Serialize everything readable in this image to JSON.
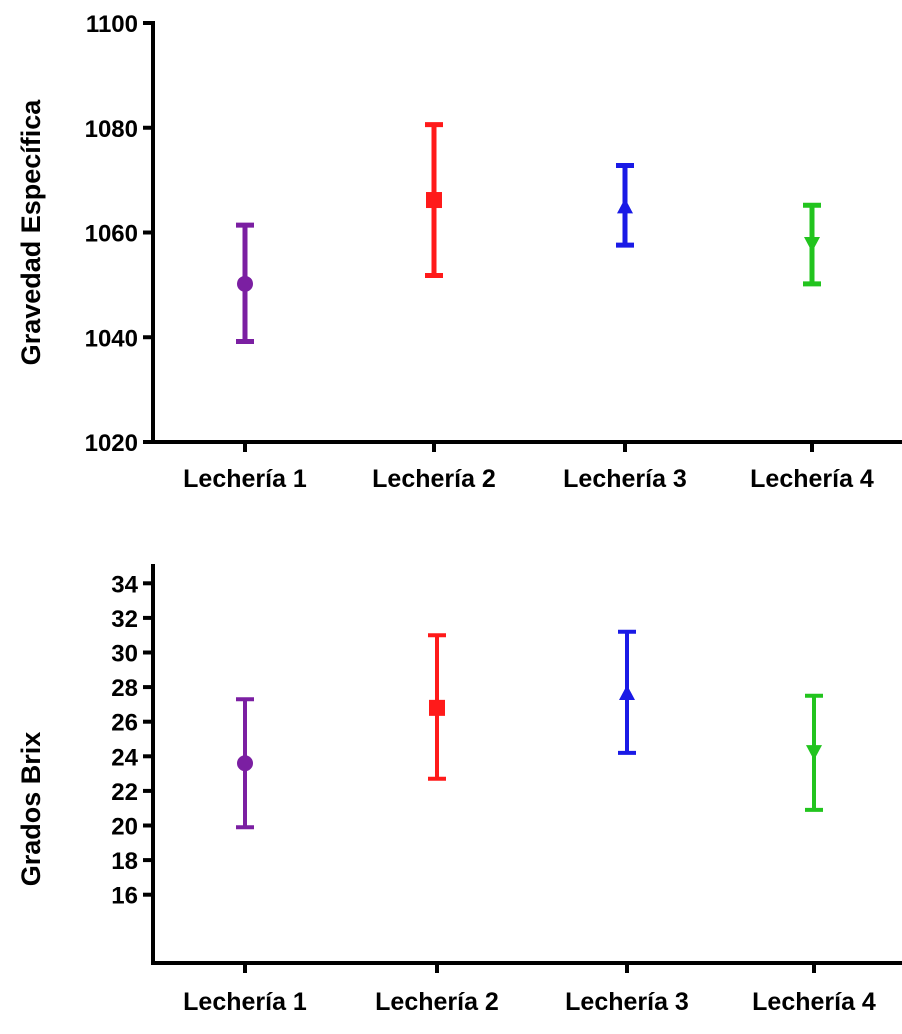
{
  "chart_data": [
    {
      "type": "scatter",
      "title": "",
      "xlabel": "",
      "ylabel": "Gravedad Específica",
      "ylim": [
        1020,
        1100
      ],
      "yticks": [
        1020,
        1040,
        1060,
        1080,
        1100
      ],
      "categories": [
        "Lechería 1",
        "Lechería 2",
        "Lechería 3",
        "Lechería 4"
      ],
      "series": [
        {
          "marker": "circle",
          "color": "#7B1FA2",
          "mean": 1050.2,
          "lower": 1039.2,
          "upper": 1061.4
        },
        {
          "marker": "square",
          "color": "#FF1A1A",
          "mean": 1066.2,
          "lower": 1051.8,
          "upper": 1080.6
        },
        {
          "marker": "triangle-up",
          "color": "#1A1AE6",
          "mean": 1064.8,
          "lower": 1057.6,
          "upper": 1072.8
        },
        {
          "marker": "triangle-down",
          "color": "#22C41E",
          "mean": 1058.0,
          "lower": 1050.2,
          "upper": 1065.2
        }
      ],
      "grid": false,
      "legend": "none"
    },
    {
      "type": "scatter",
      "title": "",
      "xlabel": "",
      "ylabel": "Grados Brix",
      "ylim": [
        15,
        35
      ],
      "yticks": [
        16,
        18,
        20,
        22,
        24,
        26,
        28,
        30,
        32,
        34
      ],
      "categories": [
        "Lechería 1",
        "Lechería 2",
        "Lechería 3",
        "Lechería 4"
      ],
      "series": [
        {
          "marker": "circle",
          "color": "#7B1FA2",
          "mean": 23.6,
          "lower": 19.9,
          "upper": 27.3
        },
        {
          "marker": "square",
          "color": "#FF1A1A",
          "mean": 26.8,
          "lower": 22.7,
          "upper": 31.0
        },
        {
          "marker": "triangle-up",
          "color": "#1A1AE6",
          "mean": 27.6,
          "lower": 24.2,
          "upper": 31.2
        },
        {
          "marker": "triangle-down",
          "color": "#22C41E",
          "mean": 24.3,
          "lower": 20.9,
          "upper": 27.5
        }
      ],
      "grid": false,
      "legend": "none"
    }
  ]
}
